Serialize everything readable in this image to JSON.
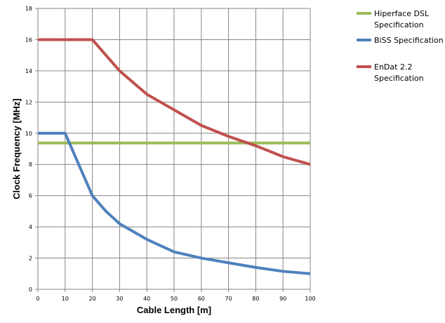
{
  "chart_data": {
    "type": "line",
    "title": "",
    "xlabel": "Cable Length [m]",
    "ylabel": "Clock Frequency [MHz]",
    "xlim": [
      0,
      100
    ],
    "ylim": [
      0,
      18
    ],
    "xticks": [
      0,
      10,
      20,
      30,
      40,
      50,
      60,
      70,
      80,
      90,
      100
    ],
    "yticks": [
      0,
      2,
      4,
      6,
      8,
      10,
      12,
      14,
      16,
      18
    ],
    "grid": true,
    "legend_position": "right",
    "series": [
      {
        "name": "Hiperface DSL Specification",
        "legend_lines": [
          "Hiperface DSL",
          "Specification"
        ],
        "color": "#9BBB59",
        "x": [
          0,
          100
        ],
        "y": [
          9.375,
          9.375
        ]
      },
      {
        "name": "BiSS Specification",
        "legend_lines": [
          "BiSS Specification"
        ],
        "color": "#4F81BD",
        "x": [
          0,
          10,
          20,
          25,
          30,
          40,
          50,
          60,
          70,
          80,
          90,
          100
        ],
        "y": [
          10,
          10,
          6,
          5,
          4.2,
          3.2,
          2.4,
          2,
          1.7,
          1.4,
          1.15,
          1
        ]
      },
      {
        "name": "EnDat 2.2 Specification",
        "legend_lines": [
          "EnDat 2.2",
          "Specification"
        ],
        "color": "#C0504D",
        "x": [
          0,
          10,
          20,
          30,
          40,
          50,
          60,
          70,
          80,
          90,
          100
        ],
        "y": [
          16,
          16,
          16,
          14,
          12.5,
          11.5,
          10.5,
          9.8,
          9.2,
          8.5,
          8
        ]
      }
    ]
  }
}
